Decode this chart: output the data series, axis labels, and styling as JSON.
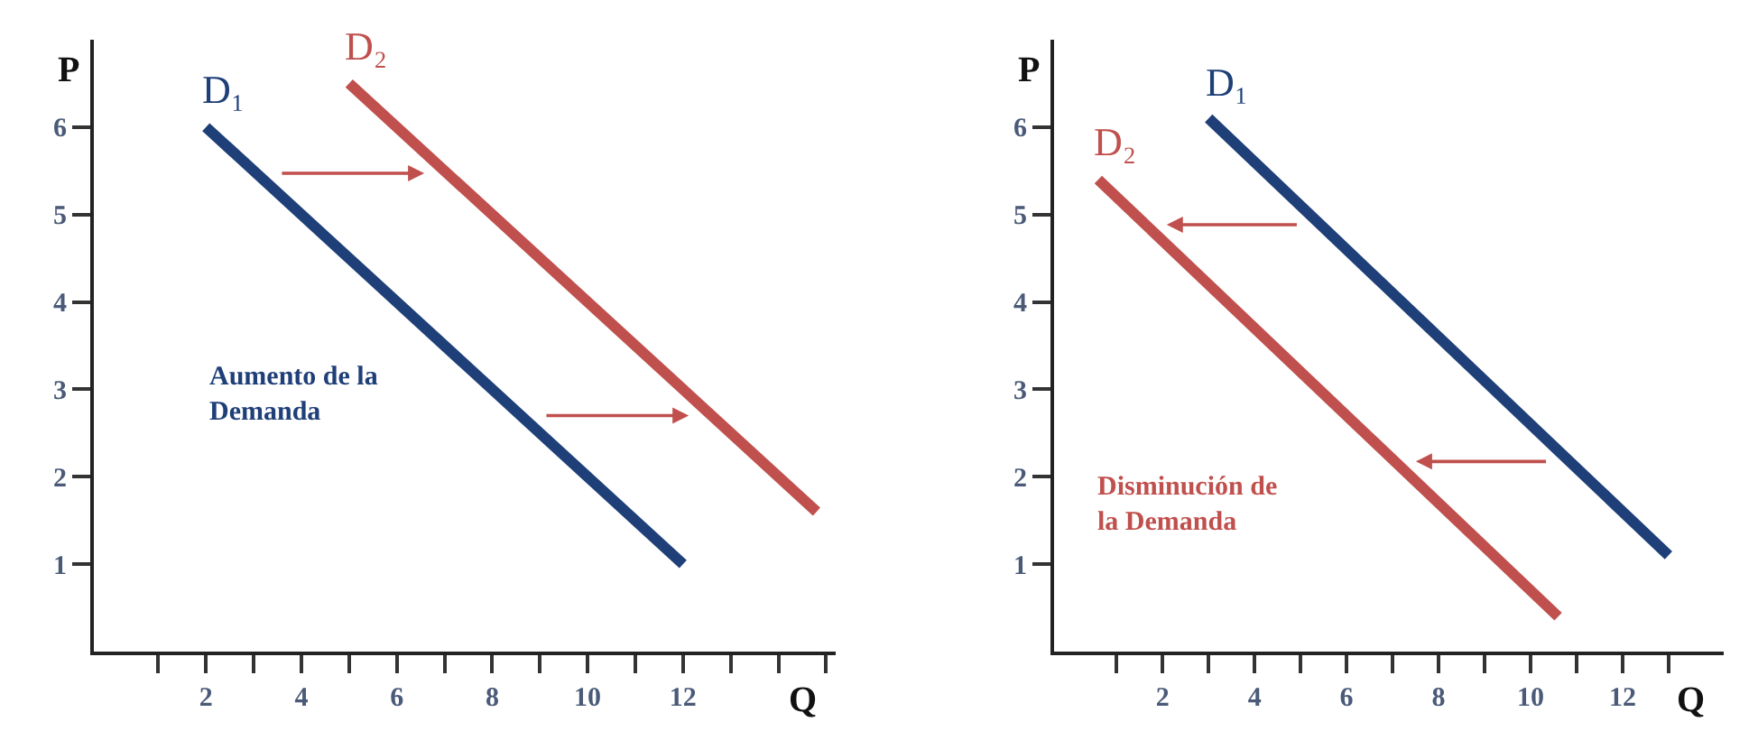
{
  "chart_data": [
    {
      "type": "line",
      "xlabel": "Q",
      "ylabel": "P",
      "annotations": [
        "Aumento de la\nDemanda"
      ],
      "xlim": [
        -0.35,
        15.2
      ],
      "ylim": [
        0,
        7
      ],
      "xticks": [
        {
          "value": 1,
          "label": null
        },
        2,
        {
          "value": 3,
          "label": null
        },
        4,
        {
          "value": 5,
          "label": null
        },
        6,
        {
          "value": 7,
          "label": null
        },
        8,
        {
          "value": 9,
          "label": null
        },
        10,
        {
          "value": 11,
          "label": null
        },
        12,
        {
          "value": 13,
          "label": null
        },
        {
          "value": 14,
          "label": null
        },
        {
          "value": 15,
          "label": null
        }
      ],
      "yticks": [
        1,
        2,
        3,
        4,
        5,
        6
      ],
      "legend": false,
      "marker": "none",
      "line_style": "solid",
      "series": [
        {
          "name": "D₁",
          "color": "#1f3f78",
          "x": [
            2,
            12
          ],
          "values": [
            6,
            1
          ]
        },
        {
          "name": "D₂",
          "color": "#c0504d",
          "x": [
            5,
            14.8
          ],
          "values": [
            6.5,
            1.6
          ]
        }
      ]
    },
    {
      "type": "line",
      "xlabel": "Q",
      "ylabel": "P",
      "annotations": [
        "Disminución de\nla Demanda"
      ],
      "xlim": [
        -0.36,
        14.2
      ],
      "ylim": [
        0,
        7
      ],
      "xticks": [
        {
          "value": 1,
          "label": null
        },
        2,
        {
          "value": 3,
          "label": null
        },
        4,
        {
          "value": 5,
          "label": null
        },
        6,
        {
          "value": 7,
          "label": null
        },
        8,
        {
          "value": 9,
          "label": null
        },
        10,
        {
          "value": 11,
          "label": null
        },
        12,
        {
          "value": 13,
          "label": null
        }
      ],
      "yticks": [
        1,
        2,
        3,
        4,
        5,
        6
      ],
      "legend": false,
      "marker": "none",
      "line_style": "solid",
      "series": [
        {
          "name": "D₁",
          "color": "#1f3f78",
          "x": [
            3,
            13
          ],
          "values": [
            6.1,
            1.1
          ]
        },
        {
          "name": "D₂",
          "color": "#c0504d",
          "x": [
            0.6,
            10.6
          ],
          "values": [
            5.4,
            0.4
          ]
        }
      ]
    }
  ]
}
